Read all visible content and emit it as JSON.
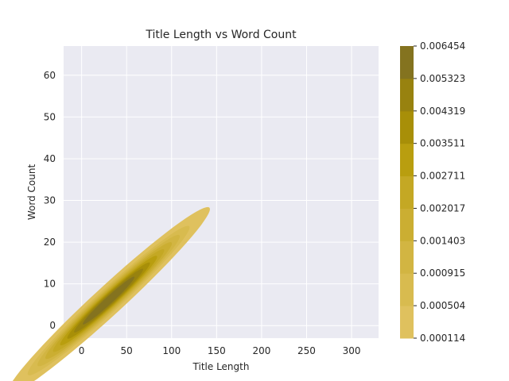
{
  "chart_data": {
    "type": "kde_contour",
    "title": "Title Length vs Word Count",
    "xlabel": "Title Length",
    "ylabel": "Word Count",
    "xlim": [
      -20,
      330
    ],
    "ylim": [
      -3,
      67
    ],
    "xticks": [
      0,
      50,
      100,
      150,
      200,
      250,
      300
    ],
    "yticks": [
      0,
      10,
      20,
      30,
      40,
      50,
      60
    ],
    "grid": true,
    "density_model": {
      "center": [
        30,
        6
      ],
      "trend_slope": 0.195,
      "spread_along": 40,
      "spread_across": 1.6
    },
    "levels": [
      0.000114,
      0.000504,
      0.000915,
      0.001403,
      0.002017,
      0.002711,
      0.003511,
      0.004319,
      0.005323,
      0.006454
    ],
    "level_labels": [
      "0.000114",
      "0.000504",
      "0.000915",
      "0.001403",
      "0.002017",
      "0.002711",
      "0.003511",
      "0.004319",
      "0.005323",
      "0.006454"
    ],
    "colorbar_colors": [
      "#dfc15e",
      "#d8bb4f",
      "#d2b542",
      "#cbae32",
      "#c4a824",
      "#b99e0f",
      "#a88f08",
      "#98820f",
      "#84731f",
      "#6a5d2b"
    ]
  }
}
